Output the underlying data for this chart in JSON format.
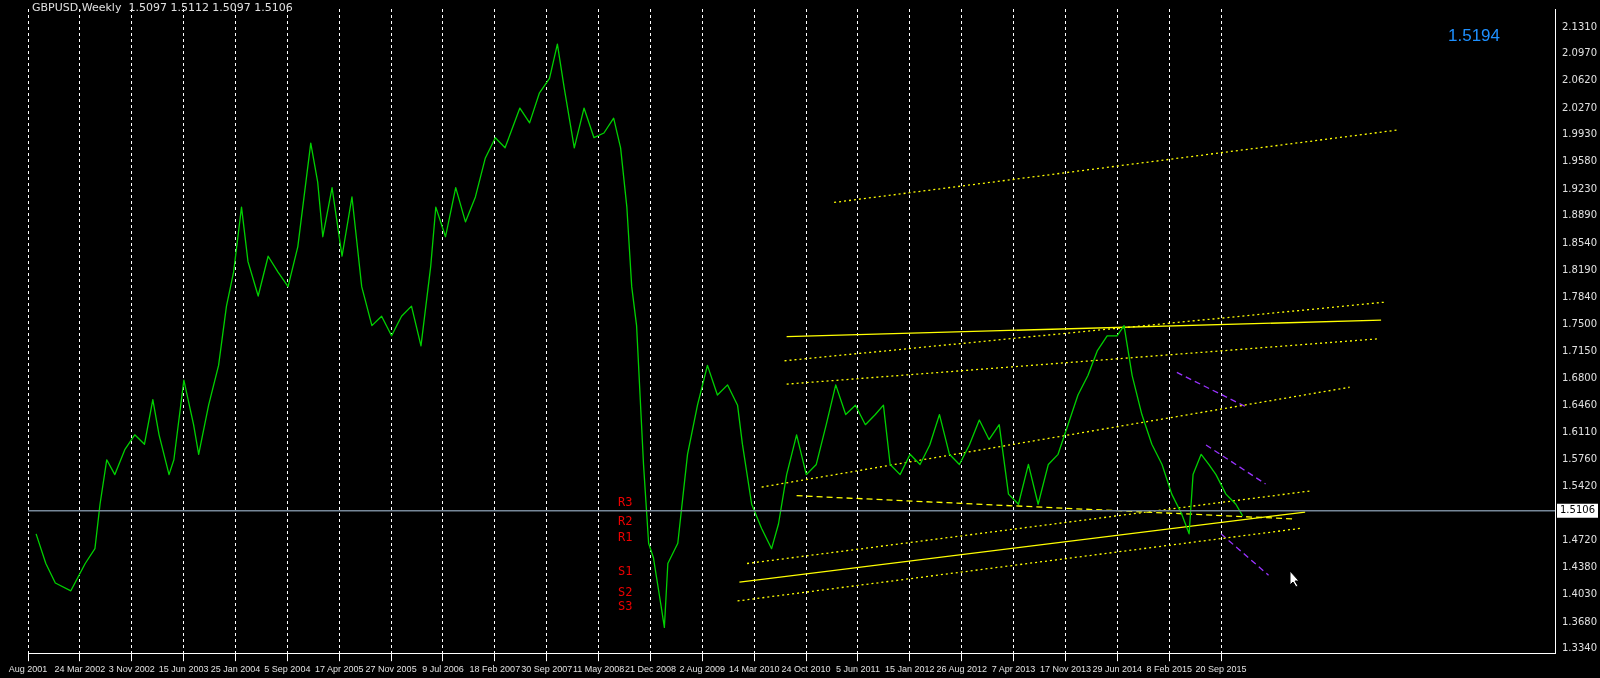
{
  "chart_data": {
    "type": "line",
    "title": "GBPUSD,Weekly  1.5097 1.5112 1.5097 1.5106",
    "annotations": [
      "1.5194",
      "R3",
      "R2",
      "R1",
      "S1",
      "S2",
      "S3"
    ],
    "xlim": [
      "2001-08-12",
      "2019-09-01"
    ],
    "xticks": [
      {
        "value": "2001-08-12",
        "label": "Aug 2001"
      },
      {
        "value": "2002-03-24",
        "label": "24 Mar 2002"
      },
      {
        "value": "2002-11-03",
        "label": "3 Nov 2002"
      },
      {
        "value": "2003-06-15",
        "label": "15 Jun 2003"
      },
      {
        "value": "2004-01-25",
        "label": "25 Jan 2004"
      },
      {
        "value": "2004-09-05",
        "label": "5 Sep 2004"
      },
      {
        "value": "2005-04-17",
        "label": "17 Apr 2005"
      },
      {
        "value": "2005-11-27",
        "label": "27 Nov 2005"
      },
      {
        "value": "2006-07-09",
        "label": "9 Jul 2006"
      },
      {
        "value": "2007-02-18",
        "label": "18 Feb 2007"
      },
      {
        "value": "2007-09-30",
        "label": "30 Sep 2007"
      },
      {
        "value": "2008-05-11",
        "label": "11 May 2008"
      },
      {
        "value": "2008-12-21",
        "label": "21 Dec 2008"
      },
      {
        "value": "2009-08-02",
        "label": "2 Aug 2009"
      },
      {
        "value": "2010-03-14",
        "label": "14 Mar 2010"
      },
      {
        "value": "2010-10-24",
        "label": "24 Oct 2010"
      },
      {
        "value": "2011-06-05",
        "label": "5 Jun 2011"
      },
      {
        "value": "2012-01-15",
        "label": "15 Jan 2012"
      },
      {
        "value": "2012-08-26",
        "label": "26 Aug 2012"
      },
      {
        "value": "2013-04-07",
        "label": "7 Apr 2013"
      },
      {
        "value": "2013-11-17",
        "label": "17 Nov 2013"
      },
      {
        "value": "2014-06-29",
        "label": "29 Jun 2014"
      },
      {
        "value": "2015-02-08",
        "label": "8 Feb 2015"
      },
      {
        "value": "2015-09-20",
        "label": "20 Sep 2015"
      }
    ],
    "ylim": [
      1.328,
      2.154
    ],
    "yticks": [
      {
        "value": 1.334,
        "label": "1.3340"
      },
      {
        "value": 1.368,
        "label": "1.3680"
      },
      {
        "value": 1.403,
        "label": "1.4030"
      },
      {
        "value": 1.438,
        "label": "1.4380"
      },
      {
        "value": 1.472,
        "label": "1.4720"
      },
      {
        "value": 1.542,
        "label": "1.5420"
      },
      {
        "value": 1.576,
        "label": "1.5760"
      },
      {
        "value": 1.611,
        "label": "1.6110"
      },
      {
        "value": 1.646,
        "label": "1.6460"
      },
      {
        "value": 1.68,
        "label": "1.6800"
      },
      {
        "value": 1.715,
        "label": "1.7150"
      },
      {
        "value": 1.75,
        "label": "1.7500"
      },
      {
        "value": 1.784,
        "label": "1.7840"
      },
      {
        "value": 1.819,
        "label": "1.8190"
      },
      {
        "value": 1.854,
        "label": "1.8540"
      },
      {
        "value": 1.889,
        "label": "1.8890"
      },
      {
        "value": 1.923,
        "label": "1.9230"
      },
      {
        "value": 1.958,
        "label": "1.9580"
      },
      {
        "value": 1.993,
        "label": "1.9930"
      },
      {
        "value": 2.027,
        "label": "2.0270"
      },
      {
        "value": 2.062,
        "label": "2.0620"
      },
      {
        "value": 2.097,
        "label": "2.0970"
      },
      {
        "value": 2.131,
        "label": "2.1310"
      }
    ],
    "ref_lines": [
      {
        "axis": "y",
        "value": 1.5106,
        "label": "1.5106",
        "color": "#778899"
      }
    ],
    "grid": "x",
    "legend": false,
    "marker": "none",
    "series": [
      {
        "color": "#00d000",
        "line_style": "solid",
        "x": [
          "2001-09-16",
          "2001-10-28",
          "2001-12-08",
          "2002-02-13",
          "2002-04-16",
          "2002-05-28",
          "2002-06-19",
          "2002-07-18",
          "2002-08-22",
          "2002-10-04",
          "2002-11-16",
          "2002-12-28",
          "2003-02-02",
          "2003-03-01",
          "2003-04-13",
          "2003-05-04",
          "2003-06-16",
          "2003-07-28",
          "2003-08-19",
          "2003-10-01",
          "2003-11-13",
          "2003-12-17",
          "2004-01-17",
          "2004-02-20",
          "2004-03-19",
          "2004-05-02",
          "2004-06-14",
          "2004-07-26",
          "2004-09-08",
          "2004-10-20",
          "2004-12-15",
          "2005-01-14",
          "2005-02-05",
          "2005-03-17",
          "2005-04-29",
          "2005-06-11",
          "2005-07-23",
          "2005-09-05",
          "2005-10-17",
          "2005-11-29",
          "2006-01-11",
          "2006-02-23",
          "2006-04-05",
          "2006-05-17",
          "2006-06-08",
          "2006-07-20",
          "2006-09-02",
          "2006-10-14",
          "2006-11-26",
          "2007-01-08",
          "2007-02-20",
          "2007-04-03",
          "2007-06-06",
          "2007-07-18",
          "2007-08-29",
          "2007-10-12",
          "2007-11-15",
          "2007-12-15",
          "2008-01-27",
          "2008-03-09",
          "2008-04-21",
          "2008-06-03",
          "2008-07-15",
          "2008-08-14",
          "2008-09-10",
          "2008-10-01",
          "2008-10-22",
          "2008-11-21",
          "2008-12-13",
          "2009-01-03",
          "2009-02-03",
          "2009-02-19",
          "2009-03-06",
          "2009-04-18",
          "2009-05-30",
          "2009-07-12",
          "2009-08-24",
          "2009-10-06",
          "2009-11-19",
          "2010-01-01",
          "2010-01-22",
          "2010-03-03",
          "2010-04-15",
          "2010-05-28",
          "2010-06-27",
          "2010-08-01",
          "2010-09-13",
          "2010-10-25",
          "2010-12-07",
          "2011-01-19",
          "2011-03-01",
          "2011-04-13",
          "2011-05-25",
          "2011-07-07",
          "2011-08-19",
          "2011-09-23",
          "2011-10-22",
          "2011-12-04",
          "2012-01-16",
          "2012-02-28",
          "2012-04-10",
          "2012-05-22",
          "2012-07-04",
          "2012-08-16",
          "2012-09-28",
          "2012-11-10",
          "2012-12-22",
          "2013-02-04",
          "2013-03-16",
          "2013-04-28",
          "2013-06-10",
          "2013-07-22",
          "2013-09-04",
          "2013-10-16",
          "2013-11-28",
          "2014-01-10",
          "2014-02-22",
          "2014-04-04",
          "2014-05-16",
          "2014-06-28",
          "2014-07-28",
          "2014-09-01",
          "2014-10-13",
          "2014-11-25",
          "2015-01-08",
          "2015-02-19",
          "2015-04-02",
          "2015-05-05",
          "2015-05-22",
          "2015-06-26",
          "2015-07-29",
          "2015-08-29",
          "2015-10-11",
          "2015-11-23",
          "2015-12-22"
        ],
        "values": [
          1.481,
          1.443,
          1.418,
          1.408,
          1.443,
          1.462,
          1.519,
          1.576,
          1.557,
          1.589,
          1.608,
          1.596,
          1.653,
          1.608,
          1.557,
          1.576,
          1.678,
          1.621,
          1.583,
          1.646,
          1.697,
          1.773,
          1.817,
          1.9,
          1.83,
          1.786,
          1.837,
          1.817,
          1.798,
          1.849,
          1.982,
          1.932,
          1.862,
          1.925,
          1.837,
          1.913,
          1.798,
          1.748,
          1.76,
          1.735,
          1.76,
          1.773,
          1.722,
          1.824,
          1.9,
          1.862,
          1.925,
          1.881,
          1.913,
          1.963,
          1.989,
          1.976,
          2.027,
          2.008,
          2.046,
          2.065,
          2.109,
          2.052,
          1.976,
          2.027,
          1.989,
          1.995,
          2.014,
          1.976,
          1.9,
          1.798,
          1.748,
          1.57,
          1.469,
          1.45,
          1.392,
          1.361,
          1.443,
          1.469,
          1.583,
          1.646,
          1.697,
          1.659,
          1.672,
          1.646,
          1.596,
          1.519,
          1.488,
          1.462,
          1.494,
          1.557,
          1.608,
          1.557,
          1.57,
          1.621,
          1.672,
          1.634,
          1.646,
          1.621,
          1.634,
          1.646,
          1.57,
          1.557,
          1.583,
          1.57,
          1.595,
          1.634,
          1.583,
          1.57,
          1.595,
          1.627,
          1.602,
          1.621,
          1.532,
          1.519,
          1.57,
          1.519,
          1.57,
          1.583,
          1.621,
          1.659,
          1.684,
          1.716,
          1.735,
          1.735,
          1.748,
          1.684,
          1.634,
          1.596,
          1.57,
          1.532,
          1.507,
          1.481,
          1.557,
          1.583,
          1.57,
          1.557,
          1.532,
          1.519,
          1.504
        ]
      },
      {
        "color": "#ffff00",
        "line_style": "dotted",
        "x": [
          "2011-02-22",
          "2017-10-27"
        ],
        "values": [
          1.906,
          1.999
        ]
      },
      {
        "color": "#ffff00",
        "line_style": "dotted",
        "x": [
          "2010-07-23",
          "2017-08-24"
        ],
        "values": [
          1.703,
          1.778
        ]
      },
      {
        "color": "#ffff00",
        "line_style": "solid",
        "x": [
          "2010-08-01",
          "2017-08-11"
        ],
        "values": [
          1.734,
          1.755
        ]
      },
      {
        "color": "#ffff00",
        "line_style": "dotted",
        "x": [
          "2010-08-01",
          "2017-07-25"
        ],
        "values": [
          1.673,
          1.731
        ]
      },
      {
        "color": "#ffff00",
        "line_style": "dotted",
        "x": [
          "2010-04-15",
          "2017-03-28"
        ],
        "values": [
          1.541,
          1.669
        ]
      },
      {
        "color": "#ffff00",
        "line_style": "dotted",
        "x": [
          "2010-02-11",
          "2016-10-08"
        ],
        "values": [
          1.443,
          1.536
        ]
      },
      {
        "color": "#ffff00",
        "line_style": "solid",
        "x": [
          "2010-01-09",
          "2016-09-17"
        ],
        "values": [
          1.419,
          1.509
        ]
      },
      {
        "color": "#ffff00",
        "line_style": "dotted",
        "x": [
          "2010-01-01",
          "2016-08-26"
        ],
        "values": [
          1.395,
          1.488
        ]
      },
      {
        "color": "#ffff00",
        "line_style": "dashed",
        "x": [
          "2010-09-13",
          "2016-08-05"
        ],
        "values": [
          1.53,
          1.5
        ]
      },
      {
        "color": "#9933ff",
        "line_style": "dashed",
        "x": [
          "2015-03-13",
          "2016-01-05"
        ],
        "values": [
          1.688,
          1.644
        ]
      },
      {
        "color": "#9933ff",
        "line_style": "dashed",
        "x": [
          "2015-07-17",
          "2016-03-30"
        ],
        "values": [
          1.595,
          1.545
        ]
      },
      {
        "color": "#9933ff",
        "line_style": "dashed",
        "x": [
          "2015-09-20",
          "2016-04-12"
        ],
        "values": [
          1.481,
          1.428
        ]
      }
    ]
  }
}
